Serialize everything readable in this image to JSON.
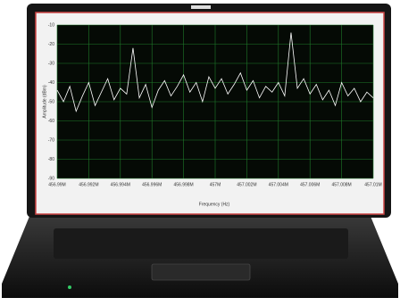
{
  "chart_data": {
    "type": "line",
    "x_label": "Frequency (Hz)",
    "y_label": "Amplitude (dBm)",
    "x": [
      456990000,
      456990400,
      456990800,
      456991200,
      456991600,
      456992000,
      456992400,
      456992800,
      456993200,
      456993600,
      456994000,
      456994400,
      456994800,
      456995200,
      456995600,
      456996000,
      456996400,
      456996800,
      456997200,
      456997600,
      456998000,
      456998400,
      456998800,
      456999200,
      456999600,
      457000000,
      457000400,
      457000800,
      457001200,
      457001600,
      457002000,
      457002400,
      457002800,
      457003200,
      457003600,
      457004000,
      457004400,
      457004800,
      457005200,
      457005600,
      457006000,
      457006400,
      457006800,
      457007200,
      457007600,
      457008000,
      457008400,
      457008800,
      457009200,
      457009600,
      457010000
    ],
    "series": [
      {
        "color": "#ffffff",
        "values": [
          -44,
          -50,
          -42,
          -55,
          -47,
          -40,
          -52,
          -45,
          -38,
          -49,
          -43,
          -46,
          -22,
          -48,
          -41,
          -53,
          -44,
          -39,
          -47,
          -42,
          -36,
          -45,
          -40,
          -50,
          -37,
          -43,
          -38,
          -46,
          -41,
          -35,
          -44,
          -39,
          -48,
          -42,
          -45,
          -40,
          -47,
          -14,
          -43,
          -38,
          -46,
          -41,
          -49,
          -44,
          -52,
          -40,
          -47,
          -43,
          -50,
          -45,
          -48
        ]
      }
    ],
    "xlim": [
      456990000,
      457010000
    ],
    "xticks": [
      {
        "value": 456990000,
        "label": "456.99M"
      },
      {
        "value": 456992000,
        "label": "456.992M"
      },
      {
        "value": 456994000,
        "label": "456.994M"
      },
      {
        "value": 456996000,
        "label": "456.996M"
      },
      {
        "value": 456998000,
        "label": "456.998M"
      },
      {
        "value": 457000000,
        "label": "457M"
      },
      {
        "value": 457002000,
        "label": "457.002M"
      },
      {
        "value": 457004000,
        "label": "457.004M"
      },
      {
        "value": 457006000,
        "label": "457.006M"
      },
      {
        "value": 457008000,
        "label": "457.008M"
      },
      {
        "value": 457010000,
        "label": "457.01M"
      }
    ],
    "ylim": [
      -90,
      -10
    ],
    "yticks": [
      -90,
      -80,
      -70,
      -60,
      -50,
      -40,
      -30,
      -20,
      -10
    ],
    "grid": true,
    "grid_color": "#1f7a2a",
    "plot_background": "#050a05"
  }
}
